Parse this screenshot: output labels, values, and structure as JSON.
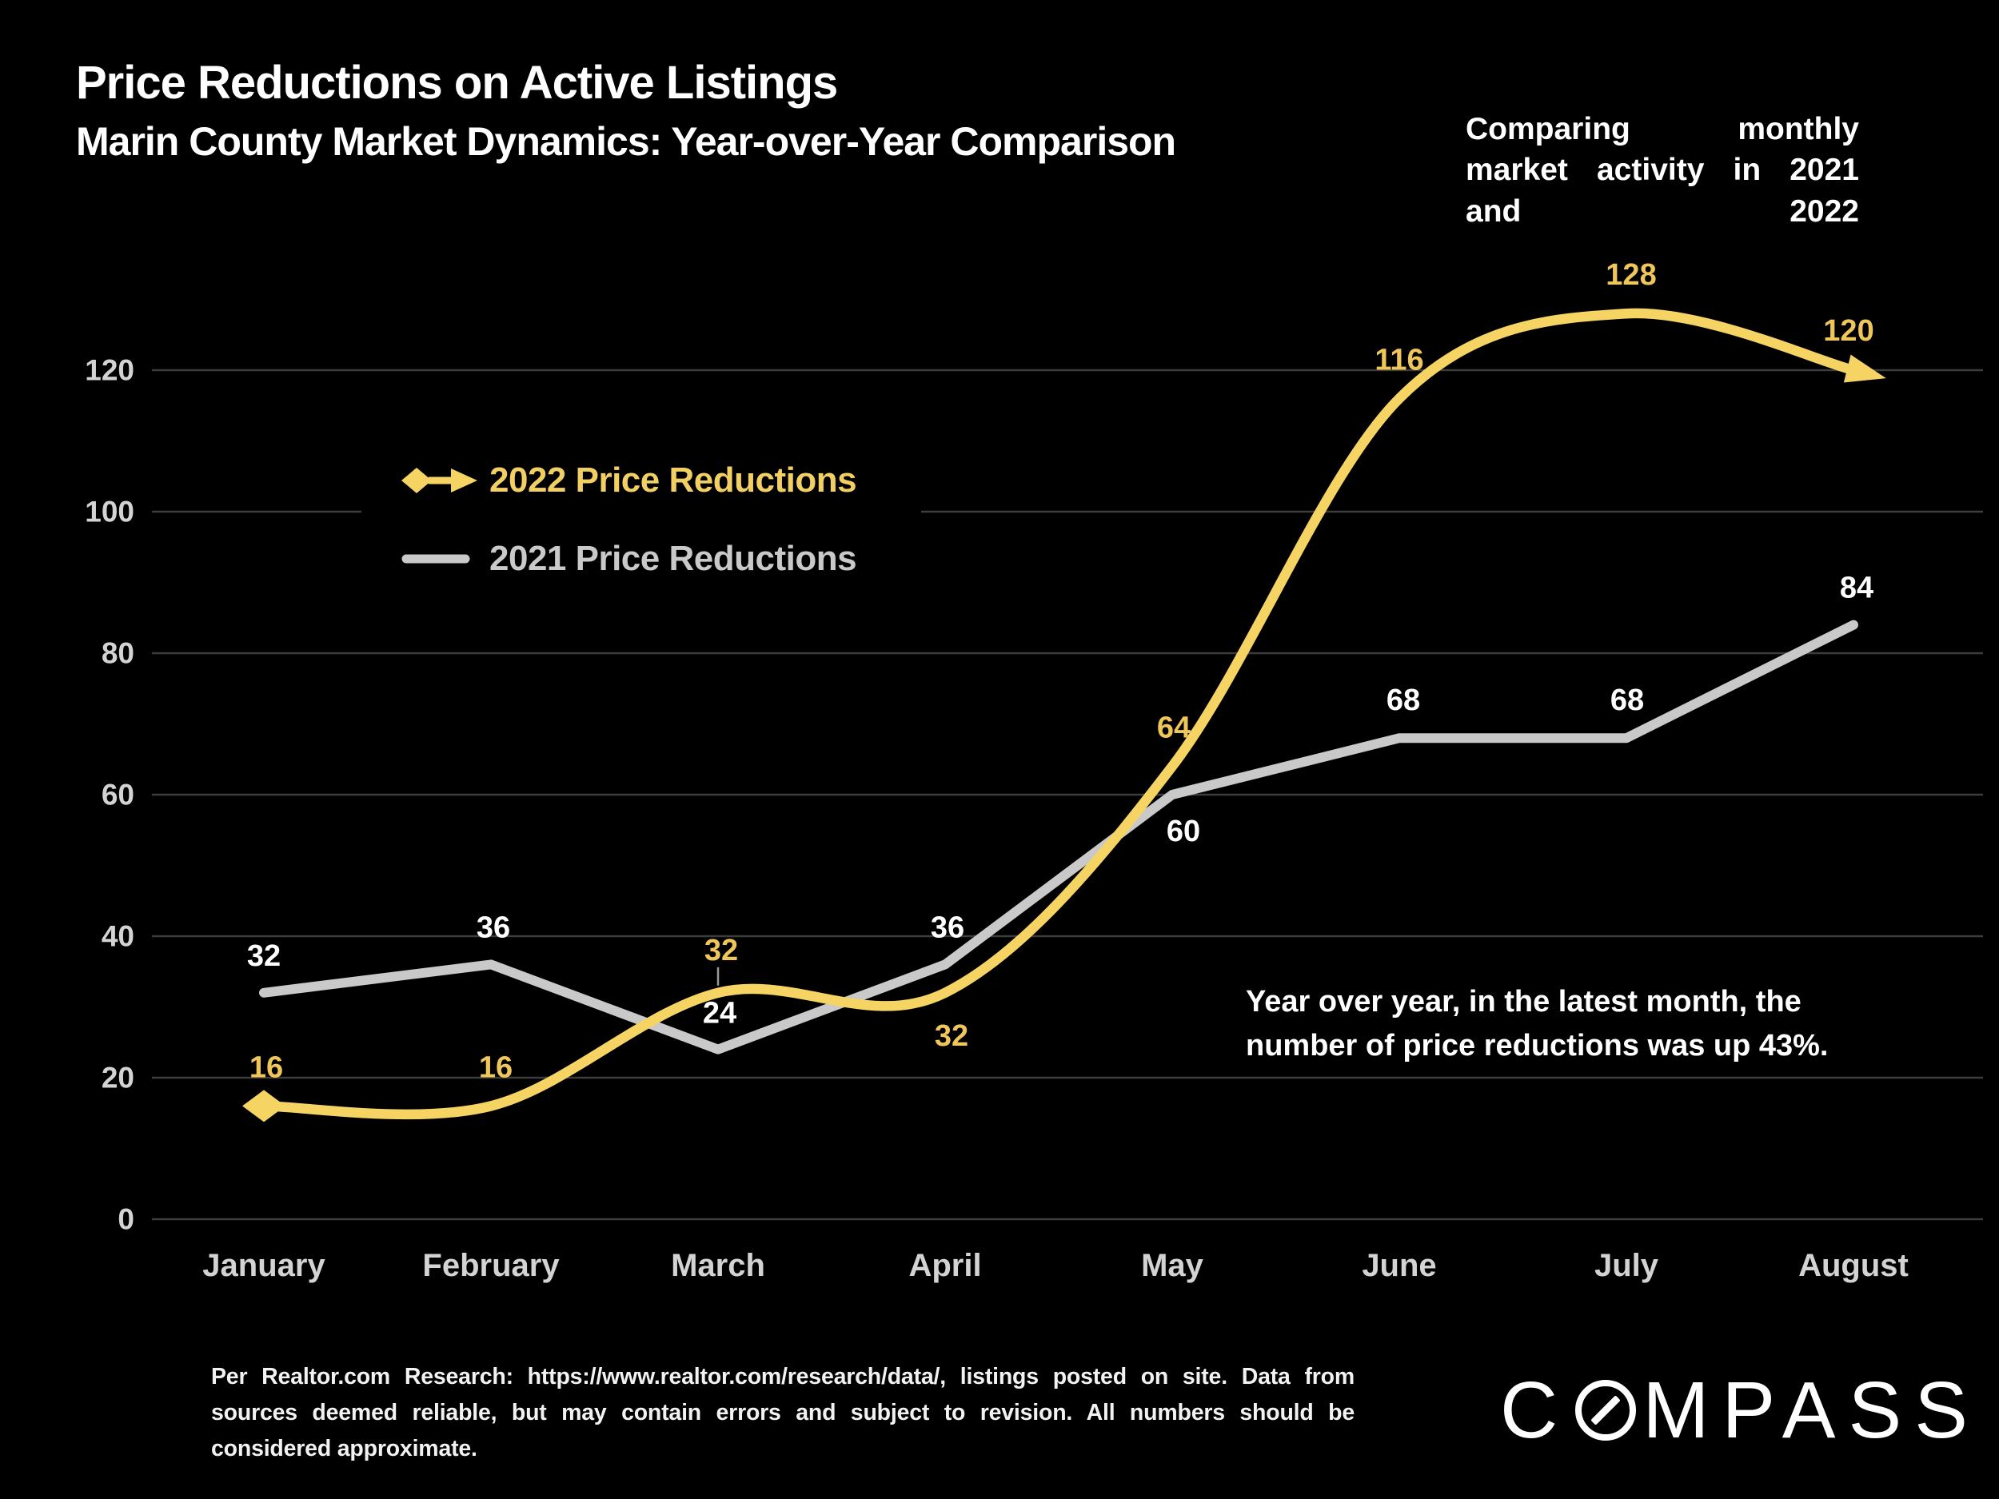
{
  "header": {
    "title": "Price Reductions on Active Listings",
    "subtitle": "Marin County Market Dynamics: Year-over-Year Comparison",
    "note": "Comparing monthly market activity in 2021 and 2022"
  },
  "chart_data": {
    "type": "line",
    "title": "Price Reductions on Active Listings",
    "categories": [
      "January",
      "February",
      "March",
      "April",
      "May",
      "June",
      "July",
      "August"
    ],
    "series": [
      {
        "name": "2022 Price Reductions",
        "values": [
          16,
          16,
          32,
          32,
          64,
          116,
          128,
          120
        ],
        "color": "#F5D464",
        "label_color": "#EFC65A",
        "line_style": "smooth",
        "start_marker": "diamond",
        "end_marker": "arrow"
      },
      {
        "name": "2021 Price Reductions",
        "values": [
          32,
          36,
          24,
          36,
          60,
          68,
          68,
          84
        ],
        "color": "#C9C9C9",
        "label_color": "#FFFFFF",
        "line_style": "straight",
        "start_marker": "none",
        "end_marker": "none"
      }
    ],
    "yticks": [
      0,
      20,
      40,
      60,
      80,
      100,
      120
    ],
    "ylim": [
      0,
      135
    ],
    "xlabel": "",
    "ylabel": "",
    "grid": "horizontal",
    "legend_position": "upper-left-inside",
    "gridline_color": "#3D3D3D",
    "axis_label_color": "#D3D3D3",
    "background_color": "#000000"
  },
  "annotation": {
    "text": "Year over year, in the latest month, the number of price reductions was up 43%."
  },
  "footer": {
    "disclaimer": "Per Realtor.com Research:  https://www.realtor.com/research/data/, listings posted on site. Data from sources deemed reliable, but may contain errors and subject to revision. All numbers should be considered approximate.",
    "logo": "COMPASS"
  }
}
